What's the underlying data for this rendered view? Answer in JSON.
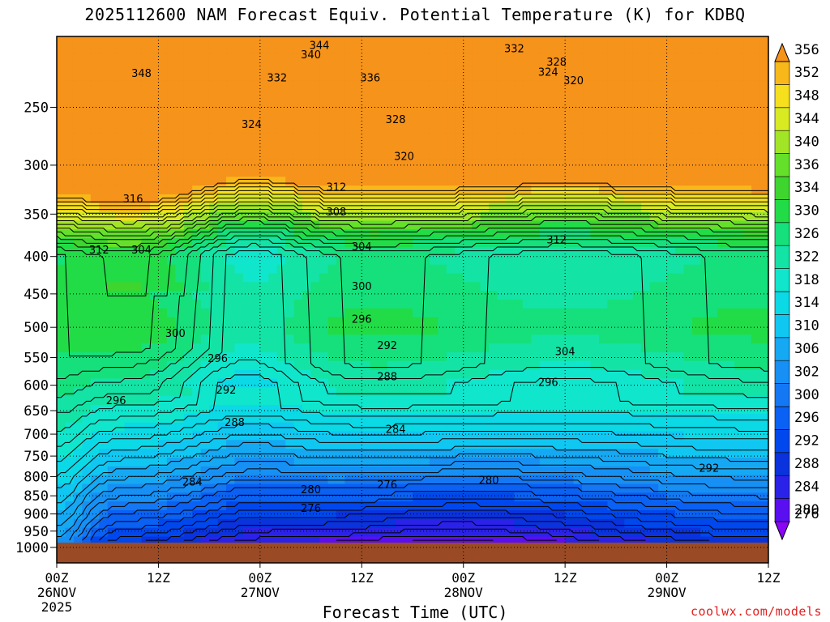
{
  "chart_data": {
    "type": "heatmap",
    "title": "2025112600 NAM Forecast Equiv. Potential Temperature (K) for KDBQ",
    "xlabel": "Forecast Time (UTC)",
    "ylabel": "",
    "credit": "coolwx.com/models",
    "y_axis_scale": "log-pressure, inverted (hPa)",
    "y_ticks": [
      250,
      300,
      350,
      400,
      450,
      500,
      550,
      600,
      650,
      700,
      750,
      800,
      850,
      900,
      950,
      1000
    ],
    "x_ticks": [
      {
        "label": "00Z",
        "sub": "26NOV",
        "sub2": "2025"
      },
      {
        "label": "12Z",
        "sub": "",
        "sub2": ""
      },
      {
        "label": "00Z",
        "sub": "27NOV",
        "sub2": ""
      },
      {
        "label": "12Z",
        "sub": "",
        "sub2": ""
      },
      {
        "label": "00Z",
        "sub": "28NOV",
        "sub2": ""
      },
      {
        "label": "12Z",
        "sub": "",
        "sub2": ""
      },
      {
        "label": "00Z",
        "sub": "29NOV",
        "sub2": ""
      },
      {
        "label": "12Z",
        "sub": "",
        "sub2": ""
      }
    ],
    "x_hours": [
      0,
      12,
      24,
      36,
      48,
      60,
      72,
      84
    ],
    "grid": true,
    "colorbar": {
      "levels": [
        276,
        280,
        284,
        288,
        292,
        296,
        300,
        302,
        306,
        310,
        314,
        318,
        322,
        326,
        330,
        334,
        336,
        340,
        344,
        348,
        352,
        356
      ],
      "colors": [
        "#8a06f6",
        "#5a0ff0",
        "#2a22e8",
        "#0a33dd",
        "#0048ee",
        "#0a61f3",
        "#1478f4",
        "#1690f4",
        "#15a8f3",
        "#10c7f2",
        "#0bd9e6",
        "#10e6cc",
        "#14e3a6",
        "#15e07c",
        "#22dc47",
        "#3ed52f",
        "#64e02b",
        "#a2e526",
        "#d8ea22",
        "#f6df1c",
        "#f8b81a",
        "#f6931a"
      ]
    },
    "isopleths": [
      {
        "value": 348,
        "label_hour": 10,
        "label_hpa": 225
      },
      {
        "value": 344,
        "label_hour": 31,
        "label_hpa": 206
      },
      {
        "value": 340,
        "label_hour": 30,
        "label_hpa": 212
      },
      {
        "value": 332,
        "label_hour": 26,
        "label_hpa": 228
      },
      {
        "value": 336,
        "label_hour": 37,
        "label_hpa": 228
      },
      {
        "value": 332,
        "label_hour": 54,
        "label_hpa": 208
      },
      {
        "value": 328,
        "label_hour": 59,
        "label_hpa": 217
      },
      {
        "value": 324,
        "label_hour": 58,
        "label_hpa": 224
      },
      {
        "value": 320,
        "label_hour": 61,
        "label_hpa": 230
      },
      {
        "value": 324,
        "label_hour": 23,
        "label_hpa": 264
      },
      {
        "value": 328,
        "label_hour": 40,
        "label_hpa": 260
      },
      {
        "value": 320,
        "label_hour": 41,
        "label_hpa": 292
      },
      {
        "value": 316,
        "label_hour": 9,
        "label_hpa": 334
      },
      {
        "value": 312,
        "label_hour": 33,
        "label_hpa": 322
      },
      {
        "value": 308,
        "label_hour": 33,
        "label_hpa": 348
      },
      {
        "value": 312,
        "label_hour": 5,
        "label_hpa": 392
      },
      {
        "value": 304,
        "label_hour": 10,
        "label_hpa": 392
      },
      {
        "value": 304,
        "label_hour": 36,
        "label_hpa": 388
      },
      {
        "value": 312,
        "label_hour": 59,
        "label_hpa": 380
      },
      {
        "value": 300,
        "label_hour": 36,
        "label_hpa": 440
      },
      {
        "value": 300,
        "label_hour": 14,
        "label_hpa": 510
      },
      {
        "value": 296,
        "label_hour": 36,
        "label_hpa": 488
      },
      {
        "value": 292,
        "label_hour": 39,
        "label_hpa": 530
      },
      {
        "value": 296,
        "label_hour": 19,
        "label_hpa": 552
      },
      {
        "value": 304,
        "label_hour": 60,
        "label_hpa": 540
      },
      {
        "value": 288,
        "label_hour": 39,
        "label_hpa": 585
      },
      {
        "value": 292,
        "label_hour": 20,
        "label_hpa": 610
      },
      {
        "value": 296,
        "label_hour": 7,
        "label_hpa": 630
      },
      {
        "value": 296,
        "label_hour": 58,
        "label_hpa": 595
      },
      {
        "value": 284,
        "label_hour": 40,
        "label_hpa": 690
      },
      {
        "value": 288,
        "label_hour": 21,
        "label_hpa": 675
      },
      {
        "value": 292,
        "label_hour": 77,
        "label_hpa": 780
      },
      {
        "value": 284,
        "label_hour": 16,
        "label_hpa": 815
      },
      {
        "value": 280,
        "label_hour": 51,
        "label_hpa": 810
      },
      {
        "value": 276,
        "label_hour": 39,
        "label_hpa": 822
      },
      {
        "value": 280,
        "label_hour": 30,
        "label_hpa": 835
      },
      {
        "value": 276,
        "label_hour": 30,
        "label_hpa": 885
      }
    ]
  }
}
